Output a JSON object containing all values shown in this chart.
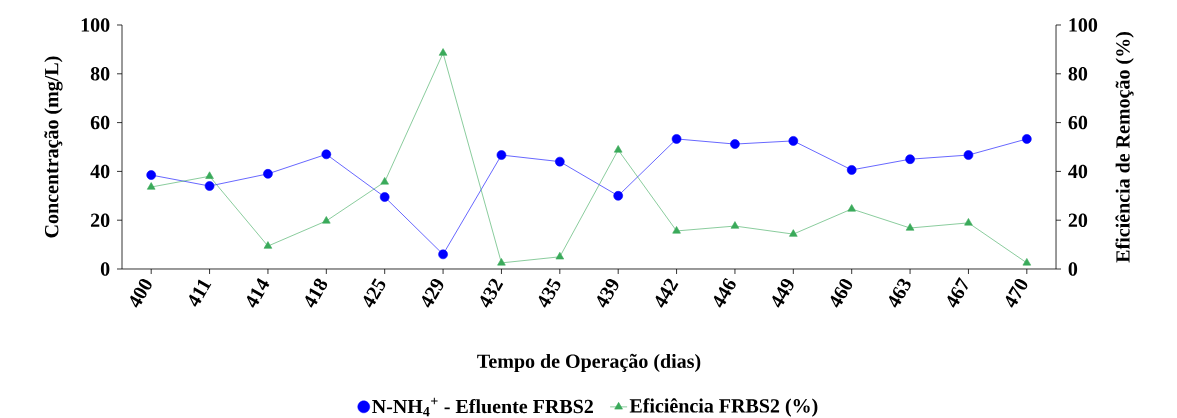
{
  "chart_data": {
    "type": "line",
    "xlabel": "Tempo de Operação (dias)",
    "ylabel": "Concentração (mg/L)",
    "y2label": "Eficiência de Remoção (%)",
    "categories": [
      "400",
      "411",
      "414",
      "418",
      "425",
      "429",
      "432",
      "435",
      "439",
      "442",
      "446",
      "449",
      "460",
      "463",
      "467",
      "470"
    ],
    "series": [
      {
        "name": "N-NH$_{4}$$^{+}$ - Efluente FRBS2",
        "color": "#0000ff",
        "marker": "circle",
        "values": [
          38.5,
          34,
          39,
          47,
          29.5,
          6,
          46.7,
          44,
          30,
          53.3,
          51.2,
          52.5,
          40.6,
          45,
          46.7,
          53.3
        ]
      },
      {
        "name": "Eficiência FRBS2 (%)",
        "color": "#3aaa5a",
        "marker": "triangle",
        "axis": "y2",
        "values": [
          33.6,
          38,
          9.4,
          19.7,
          35.7,
          88.5,
          2.5,
          5,
          48.8,
          15.6,
          17.6,
          14.3,
          24.6,
          16.8,
          18.9,
          2.5
        ]
      }
    ],
    "ylim": [
      0,
      100
    ],
    "yticks": [
      0,
      20,
      40,
      60,
      80,
      100
    ],
    "y2lim": [
      0,
      100
    ],
    "y2ticks": [
      0,
      20,
      40,
      60,
      80,
      100
    ],
    "legend": "bottom"
  }
}
